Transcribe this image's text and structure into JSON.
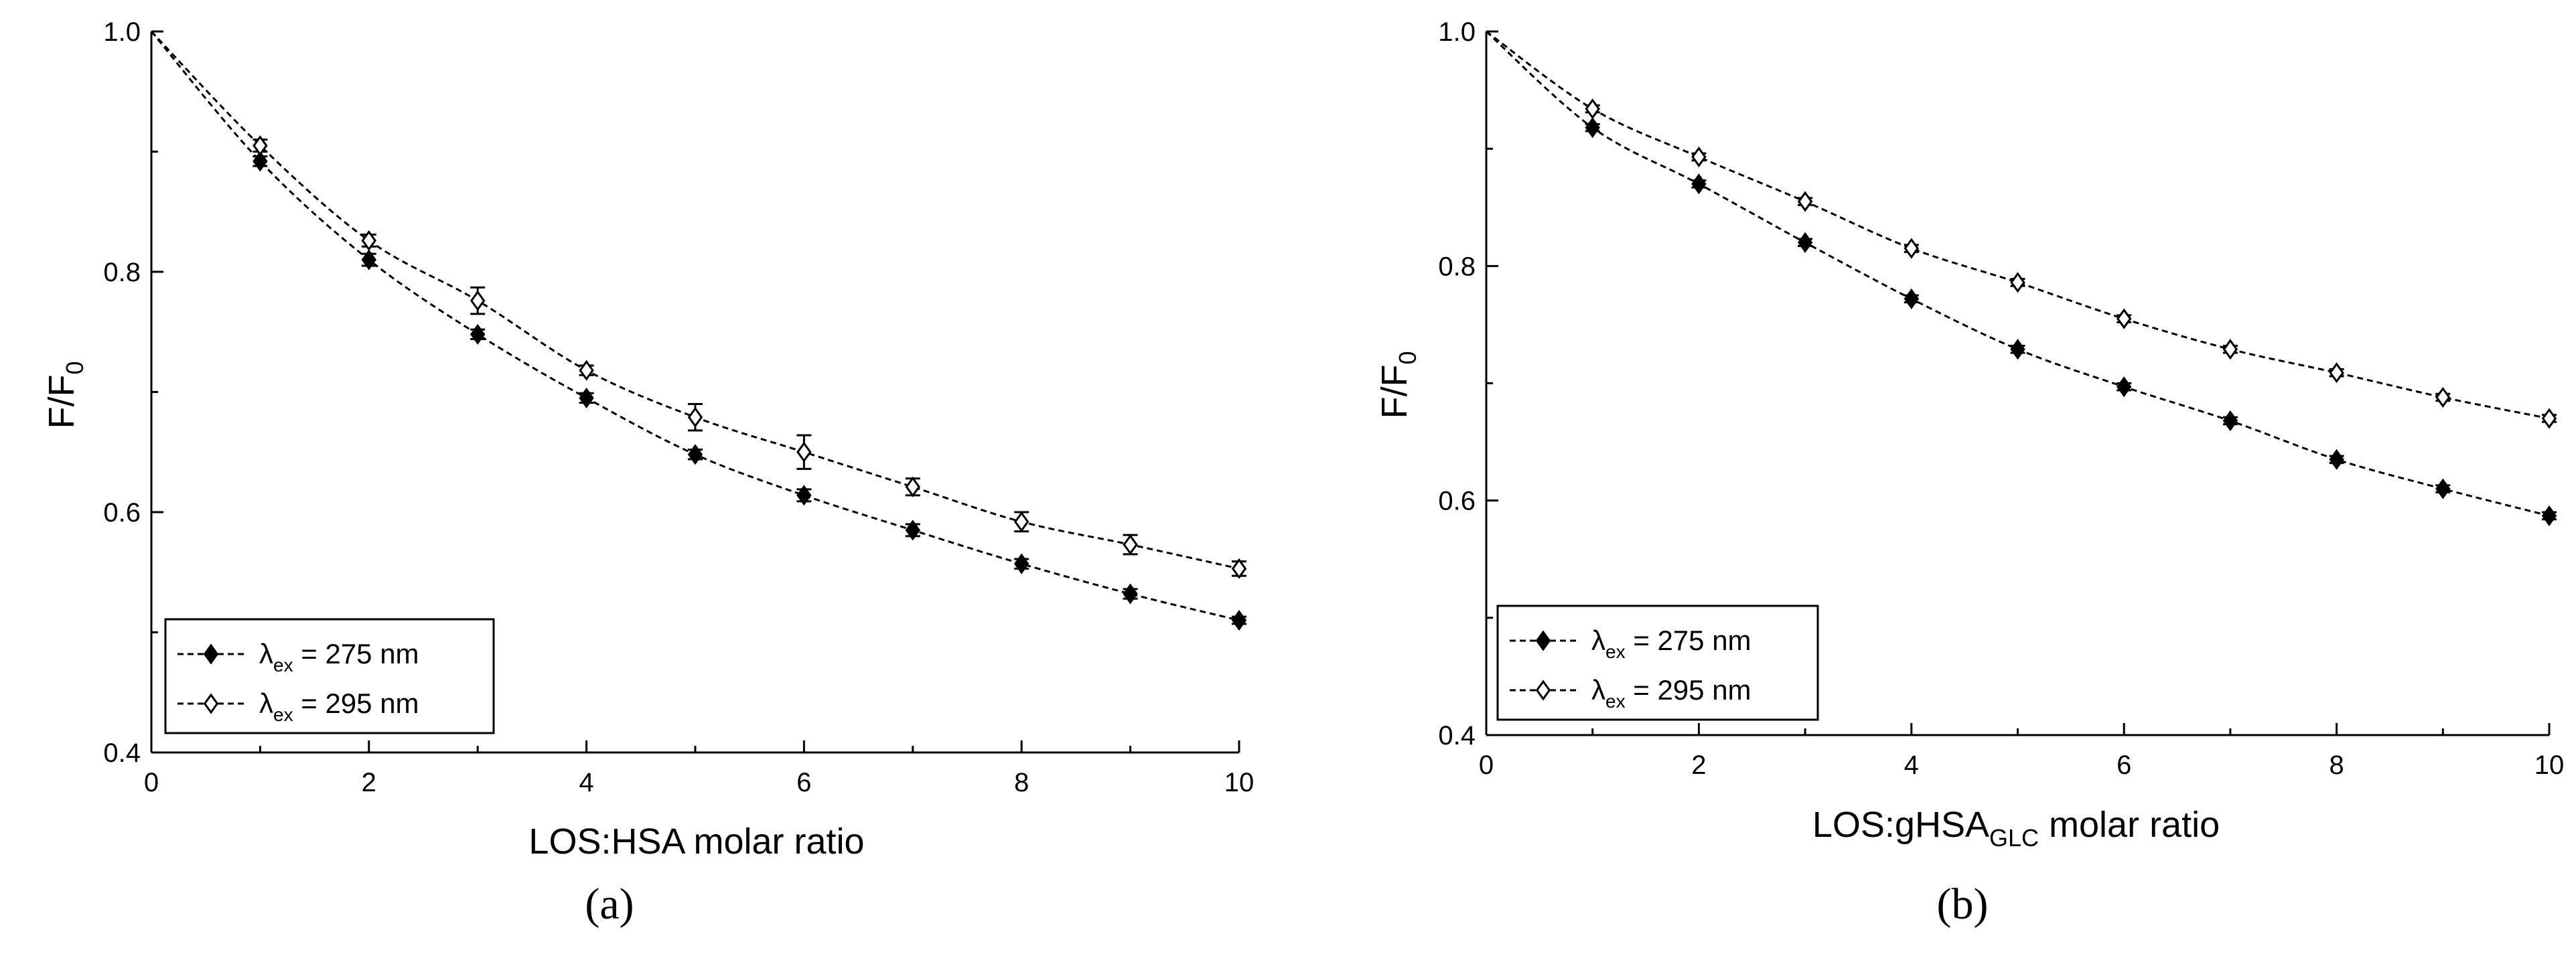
{
  "panels": [
    {
      "panel_label": "(a)",
      "chart_data": {
        "type": "line",
        "xlabel": {
          "main": "LOS:HSA molar ratio",
          "sub": "",
          "after": ""
        },
        "ylabel": {
          "main": "F/F",
          "sub": "0"
        },
        "xlim": [
          0,
          10
        ],
        "ylim": [
          0.4,
          1.0
        ],
        "x_ticks": [
          0,
          2,
          4,
          6,
          8,
          10
        ],
        "x_tick_labels": [
          "0",
          "2",
          "4",
          "6",
          "8",
          "10"
        ],
        "y_ticks": [
          0.4,
          0.6,
          0.8,
          1.0
        ],
        "y_tick_labels": [
          "0.4",
          "0.6",
          "0.8",
          "1.0"
        ],
        "grid": false,
        "legend_position": "bottom-left",
        "x": [
          0,
          1,
          2,
          3,
          4,
          5,
          6,
          7,
          8,
          9,
          10
        ],
        "series": [
          {
            "label": {
              "symbol": "λ",
              "sub": "ex",
              "rest": " = 275 nm"
            },
            "marker": "filled-diamond",
            "values": [
              1.0,
              0.892,
              0.81,
              0.748,
              0.695,
              0.648,
              0.614,
              0.585,
              0.557,
              0.532,
              0.51
            ],
            "errors": [
              0,
              0.004,
              0.005,
              0.004,
              0.004,
              0.004,
              0.005,
              0.005,
              0.004,
              0.004,
              0.003
            ]
          },
          {
            "label": {
              "symbol": "λ",
              "sub": "ex",
              "rest": " = 295 nm"
            },
            "marker": "open-diamond",
            "values": [
              1.0,
              0.905,
              0.826,
              0.776,
              0.718,
              0.679,
              0.65,
              0.621,
              0.592,
              0.573,
              0.553
            ],
            "errors": [
              0,
              0.005,
              0.005,
              0.011,
              0.004,
              0.011,
              0.014,
              0.007,
              0.008,
              0.008,
              0.006
            ]
          }
        ]
      }
    },
    {
      "panel_label": "(b)",
      "chart_data": {
        "type": "line",
        "xlabel": {
          "main": "LOS:gHSA",
          "sub": "GLC",
          "after": " molar ratio"
        },
        "ylabel": {
          "main": "F/F",
          "sub": "0"
        },
        "xlim": [
          0,
          10
        ],
        "ylim": [
          0.4,
          1.0
        ],
        "x_ticks": [
          0,
          2,
          4,
          6,
          8,
          10
        ],
        "x_tick_labels": [
          "0",
          "2",
          "4",
          "6",
          "8",
          "10"
        ],
        "y_ticks": [
          0.4,
          0.6,
          0.8,
          1.0
        ],
        "y_tick_labels": [
          "0.4",
          "0.6",
          "0.8",
          "1.0"
        ],
        "grid": false,
        "legend_position": "bottom-left",
        "x": [
          0,
          1,
          2,
          3,
          4,
          5,
          6,
          7,
          8,
          9,
          10
        ],
        "series": [
          {
            "label": {
              "symbol": "λ",
              "sub": "ex",
              "rest": " = 275 nm"
            },
            "marker": "filled-diamond",
            "values": [
              1.0,
              0.918,
              0.87,
              0.82,
              0.772,
              0.729,
              0.697,
              0.668,
              0.635,
              0.61,
              0.587
            ],
            "errors": [
              0,
              0.003,
              0.003,
              0.003,
              0.003,
              0.003,
              0.003,
              0.003,
              0.003,
              0.003,
              0.003
            ]
          },
          {
            "label": {
              "symbol": "λ",
              "sub": "ex",
              "rest": " = 295 nm"
            },
            "marker": "open-diamond",
            "values": [
              1.0,
              0.934,
              0.893,
              0.855,
              0.815,
              0.786,
              0.755,
              0.729,
              0.709,
              0.688,
              0.67
            ],
            "errors": [
              0,
              0.003,
              0.003,
              0.003,
              0.003,
              0.003,
              0.003,
              0.003,
              0.003,
              0.003,
              0.003
            ]
          }
        ]
      }
    }
  ]
}
